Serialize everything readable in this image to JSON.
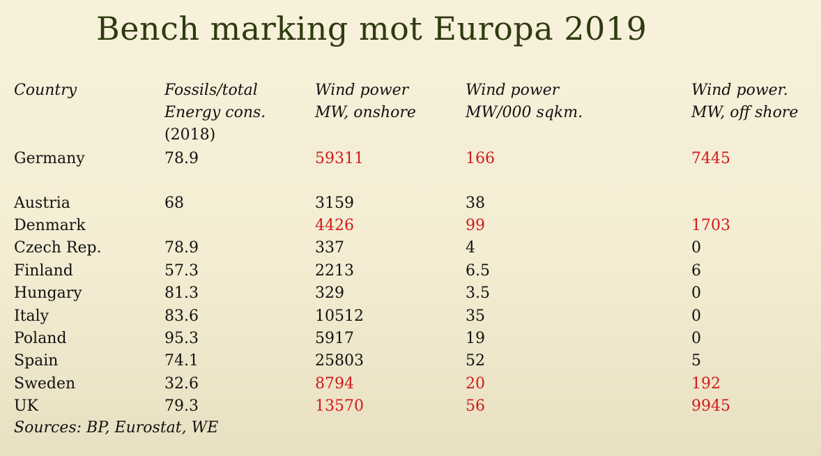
{
  "title": "Bench marking mot Europa 2019",
  "headers": [
    [
      "Country"
    ],
    [
      "Fossils/total",
      "Energy cons.",
      "(2018)"
    ],
    [
      "Wind power",
      "MW, onshore"
    ],
    [
      "Wind power",
      "MW/000 sqkm."
    ],
    [
      "Wind power.",
      "MW, off shore"
    ]
  ],
  "highlight_color": "#d11a1a",
  "rows": [
    {
      "country": "Germany",
      "fossils": "78.9",
      "onshore": "59311",
      "per_area": "166",
      "offshore": "7445",
      "highlight": true
    },
    {
      "country": "Austria",
      "fossils": "68",
      "onshore": "3159",
      "per_area": "38",
      "offshore": "",
      "highlight": false
    },
    {
      "country": "Denmark",
      "fossils": "",
      "onshore": "4426",
      "per_area": "99",
      "offshore": "1703",
      "highlight": true
    },
    {
      "country": "Czech Rep.",
      "fossils": "78.9",
      "onshore": "337",
      "per_area": "4",
      "offshore": "0",
      "highlight": false
    },
    {
      "country": "Finland",
      "fossils": "57.3",
      "onshore": "2213",
      "per_area": "6.5",
      "offshore": "6",
      "highlight": false
    },
    {
      "country": "Hungary",
      "fossils": "81.3",
      "onshore": "329",
      "per_area": "3.5",
      "offshore": "0",
      "highlight": false
    },
    {
      "country": "Italy",
      "fossils": "83.6",
      "onshore": "10512",
      "per_area": "35",
      "offshore": "0",
      "highlight": false
    },
    {
      "country": "Poland",
      "fossils": "95.3",
      "onshore": "5917",
      "per_area": "19",
      "offshore": "0",
      "highlight": false
    },
    {
      "country": "Spain",
      "fossils": "74.1",
      "onshore": "25803",
      "per_area": "52",
      "offshore": "5",
      "highlight": false
    },
    {
      "country": "Sweden",
      "fossils": "32.6",
      "onshore": "8794",
      "per_area": "20",
      "offshore": "192",
      "highlight": true
    },
    {
      "country": "UK",
      "fossils": "79.3",
      "onshore": "13570",
      "per_area": "56",
      "offshore": "9945",
      "highlight": true
    }
  ],
  "sources": "Sources: BP, Eurostat, WE"
}
